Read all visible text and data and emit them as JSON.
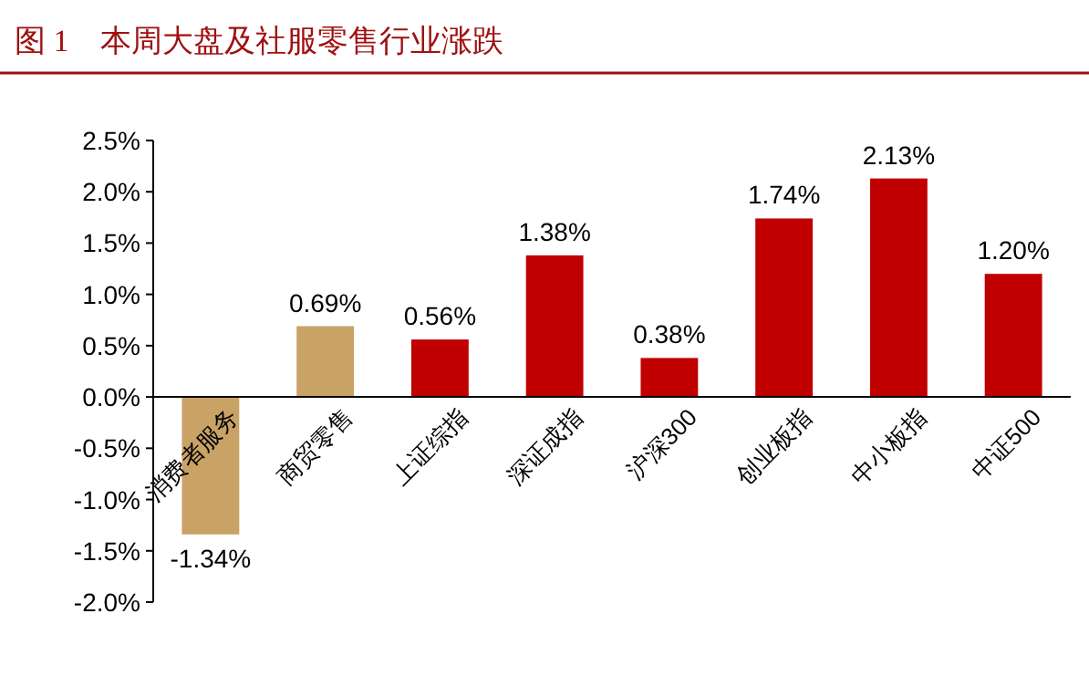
{
  "chart_data": {
    "type": "bar",
    "title": "图 1　本周大盘及社服零售行业涨跌",
    "categories": [
      "消费者服务",
      "商贸零售",
      "上证综指",
      "深证成指",
      "沪深300",
      "创业板指",
      "中小板指",
      "中证500"
    ],
    "values": [
      -1.34,
      0.69,
      0.56,
      1.38,
      0.38,
      1.74,
      2.13,
      1.2
    ],
    "colors": [
      "#c9a266",
      "#c9a266",
      "#c00000",
      "#c00000",
      "#c00000",
      "#c00000",
      "#c00000",
      "#c00000"
    ],
    "value_labels": [
      "-1.34%",
      "0.69%",
      "0.56%",
      "1.38%",
      "0.38%",
      "1.74%",
      "2.13%",
      "1.20%"
    ],
    "ylim": [
      -2.0,
      2.5
    ],
    "yticks": [
      {
        "value": -2.0,
        "label": "-2.0%"
      },
      {
        "value": -1.5,
        "label": "-1.5%"
      },
      {
        "value": -1.0,
        "label": "-1.0%"
      },
      {
        "value": -0.5,
        "label": "-0.5%"
      },
      {
        "value": 0,
        "label": "0.0%"
      },
      {
        "value": 0.5,
        "label": "0.5%"
      },
      {
        "value": 1.0,
        "label": "1.0%"
      },
      {
        "value": 1.5,
        "label": "1.5%"
      },
      {
        "value": 2.0,
        "label": "2.0%"
      },
      {
        "value": 2.5,
        "label": "2.5%"
      }
    ],
    "grid": false
  }
}
